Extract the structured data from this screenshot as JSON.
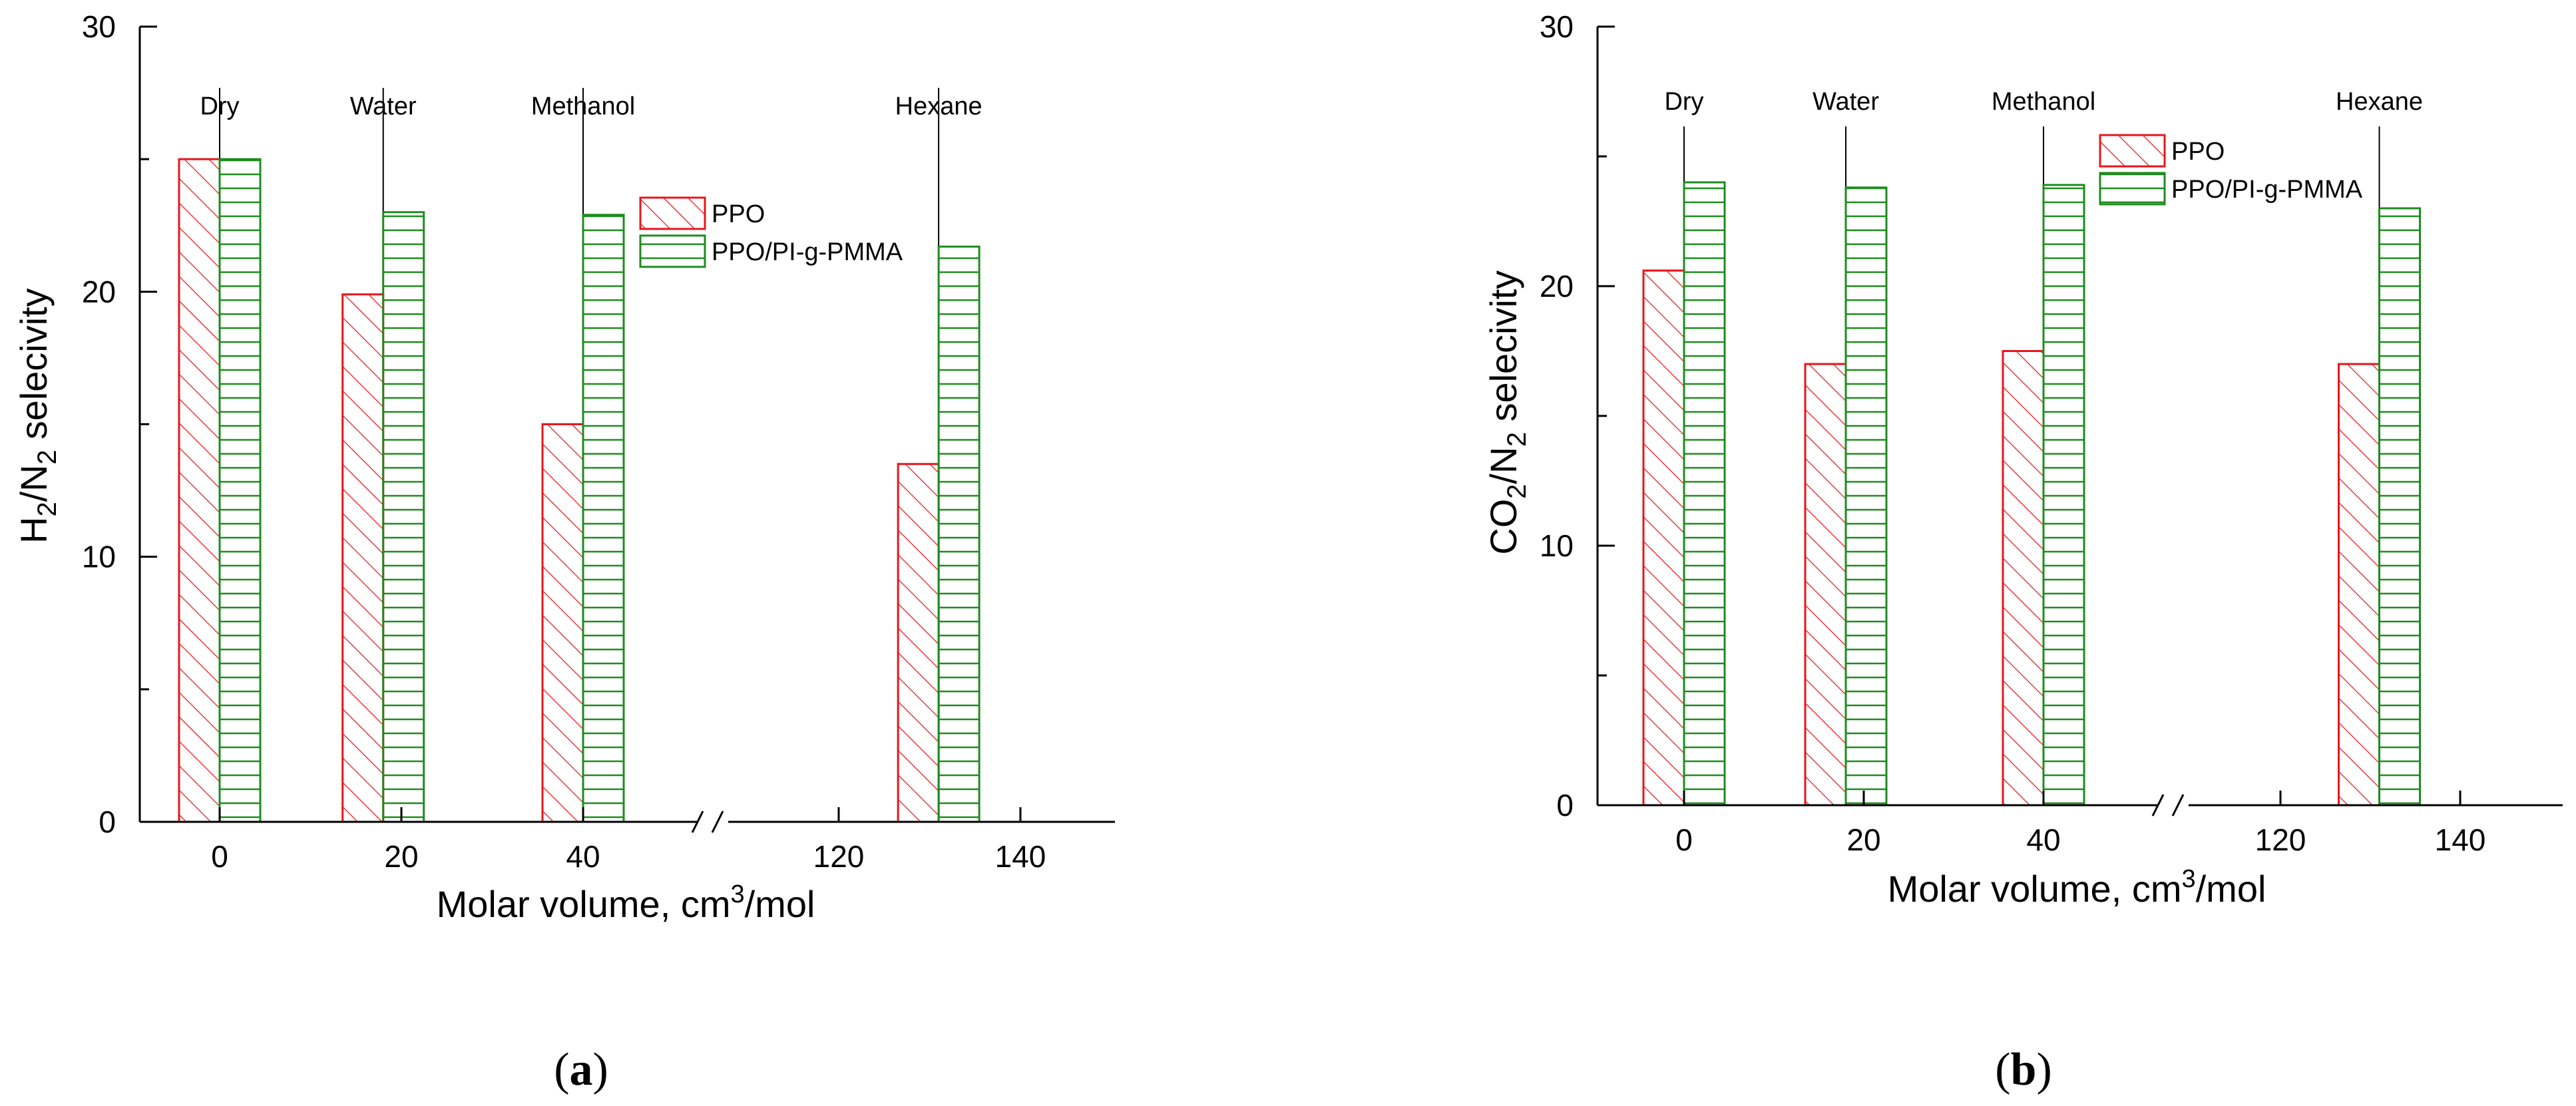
{
  "chart_data": [
    {
      "type": "bar",
      "panel": "a",
      "caption": {
        "open": "(",
        "letter": "a",
        "close": ")"
      },
      "ylabel": {
        "a": "H",
        "a_sub": "2",
        "b": "/N",
        "b_sub": "2",
        "c": " selecivity"
      },
      "xlabel": {
        "main": "Molar volume, cm",
        "sup": "3",
        "rest": "/mol"
      },
      "ylim": [
        0,
        30
      ],
      "yticks": [
        "0",
        "10",
        "20",
        "30"
      ],
      "xticks": [
        {
          "value": 0,
          "label": "0"
        },
        {
          "value": 20,
          "label": "20"
        },
        {
          "value": 40,
          "label": "40"
        },
        {
          "value": 120,
          "label": "120"
        },
        {
          "value": 140,
          "label": "140"
        }
      ],
      "axis_break": {
        "after": 40,
        "before": 120
      },
      "categories": [
        "Dry",
        "Water",
        "Methanol",
        "Hexane"
      ],
      "category_x": [
        0,
        18,
        40,
        131
      ],
      "series": [
        {
          "name": "PPO",
          "color": "#e8161b",
          "pattern": "diagonal",
          "values": [
            25.0,
            19.9,
            15.0,
            13.5
          ]
        },
        {
          "name": "PPO/PI-g-PMMA",
          "color": "#1e8c1e",
          "pattern": "horizontal",
          "values": [
            25.0,
            23.0,
            22.9,
            21.7
          ]
        }
      ],
      "legend_location": "upper center"
    },
    {
      "type": "bar",
      "panel": "b",
      "caption": {
        "open": "(",
        "letter": "b",
        "close": ")"
      },
      "ylabel": {
        "a": "CO",
        "a_sub": "2",
        "b": "/N",
        "b_sub": "2",
        "c": " selecivity"
      },
      "xlabel": {
        "main": "Molar volume, cm",
        "sup": "3",
        "rest": "/mol"
      },
      "ylim": [
        0,
        30
      ],
      "yticks": [
        "0",
        "10",
        "20",
        "30"
      ],
      "xticks": [
        {
          "value": 0,
          "label": "0"
        },
        {
          "value": 20,
          "label": "20"
        },
        {
          "value": 40,
          "label": "40"
        },
        {
          "value": 120,
          "label": "120"
        },
        {
          "value": 140,
          "label": "140"
        }
      ],
      "axis_break": {
        "after": 40,
        "before": 120
      },
      "categories": [
        "Dry",
        "Water",
        "Methanol",
        "Hexane"
      ],
      "category_x": [
        0,
        18,
        40,
        131
      ],
      "series": [
        {
          "name": "PPO",
          "color": "#e8161b",
          "pattern": "diagonal",
          "values": [
            20.6,
            17.0,
            17.5,
            17.0
          ]
        },
        {
          "name": "PPO/PI-g-PMMA",
          "color": "#1e8c1e",
          "pattern": "horizontal",
          "values": [
            24.0,
            23.8,
            23.9,
            23.0
          ]
        }
      ],
      "legend_location": "upper right"
    }
  ]
}
